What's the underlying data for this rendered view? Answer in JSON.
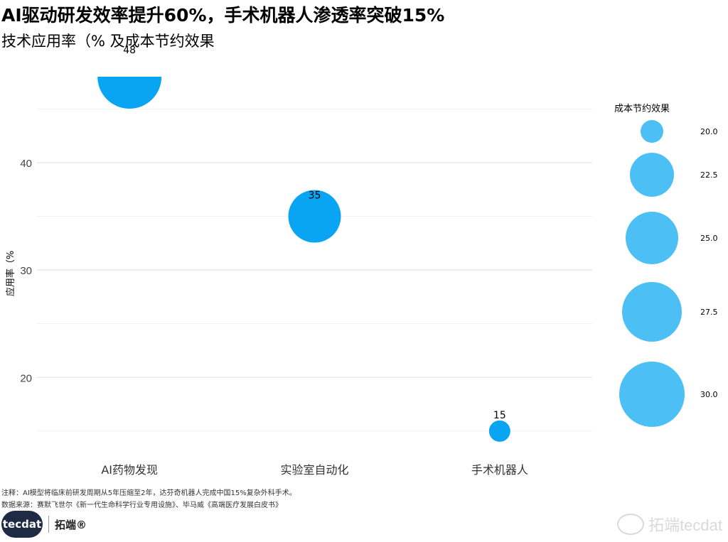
{
  "header": {
    "title": "AI驱动研发效率提升60%，手术机器人渗透率突破15%",
    "subtitle": "技术应用率（% 及成本节约效果"
  },
  "chart_data": {
    "type": "scatter",
    "categories": [
      "AI药物发现",
      "实验室自动化",
      "手术机器人"
    ],
    "values": [
      48,
      35,
      15
    ],
    "size_values": [
      null,
      null,
      null
    ],
    "data_labels": [
      "48",
      "35",
      "15"
    ],
    "ylabel": "应用率（%",
    "yticks": [
      20,
      30,
      40
    ],
    "ylim": [
      14,
      48
    ],
    "grid": true,
    "point_color": "#0aa5f2",
    "legend": {
      "title": "成本节约效果",
      "placement": "right",
      "color": "#4cc0f5",
      "entries": [
        "20.0",
        "22.5",
        "25.0",
        "27.5",
        "30.0"
      ],
      "values": [
        20.0,
        22.5,
        25.0,
        27.5,
        30.0
      ]
    }
  },
  "footer": {
    "note": "注释：AI模型将临床前研发周期从5年压缩至2年，达芬奇机器人完成中国15%复杂外科手术。",
    "source": "数据来源：赛默飞世尔《新一代生命科学行业专用设施》、毕马威《高端医疗发展白皮书》",
    "logo_main": "tecdat",
    "logo_sub": "拓端®",
    "watermark": "拓端tecdat"
  }
}
